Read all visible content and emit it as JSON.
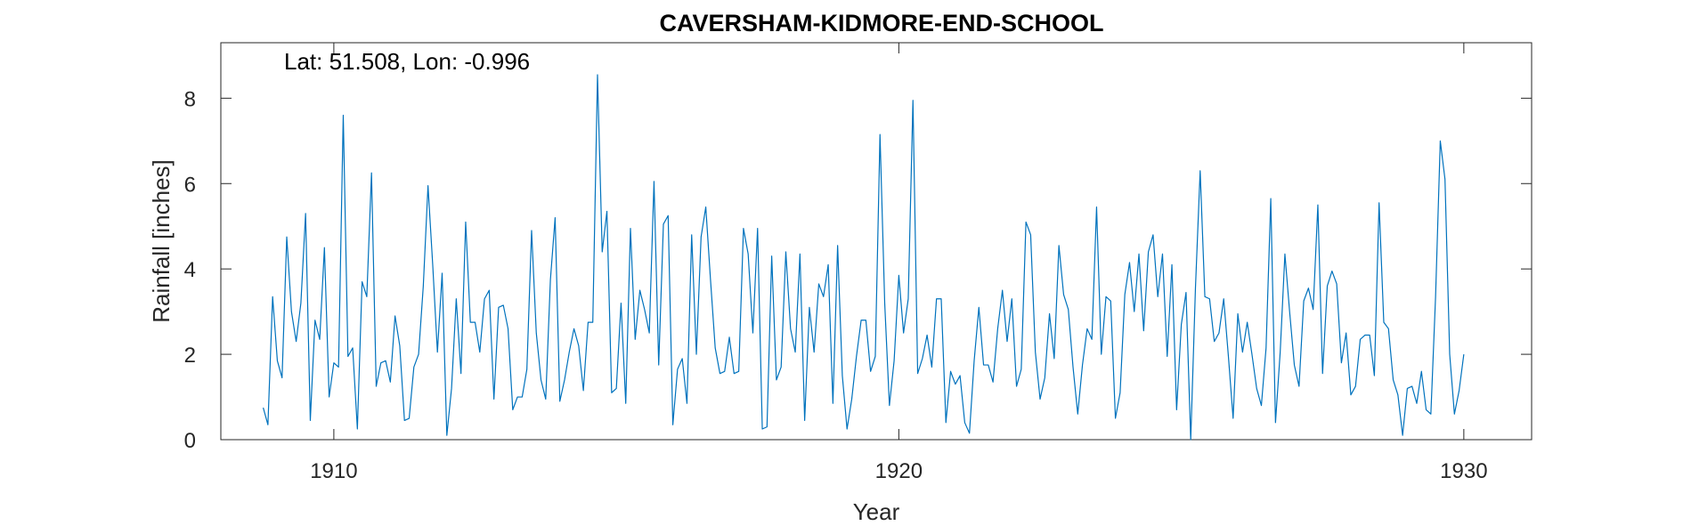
{
  "chart_data": {
    "type": "line",
    "title": "CAVERSHAM-KIDMORE-END-SCHOOL",
    "xlabel": "Year",
    "ylabel": "Rainfall [inches]",
    "annotation": "Lat: 51.508, Lon: -0.996",
    "xlim": [
      1908,
      1931.2
    ],
    "ylim": [
      0,
      9.3
    ],
    "xticks": [
      1910,
      1920,
      1930
    ],
    "yticks": [
      0,
      2,
      4,
      6,
      8
    ],
    "grid": false,
    "line_color": "#0072BD",
    "series": [
      {
        "x_start": 1908.75,
        "x_step": 0.0833333,
        "y": [
          0.75,
          0.35,
          3.35,
          1.85,
          1.45,
          4.75,
          3.0,
          2.3,
          3.2,
          5.3,
          0.45,
          2.8,
          2.35,
          4.5,
          1.0,
          1.8,
          1.7,
          7.6,
          1.95,
          2.15,
          0.25,
          3.7,
          3.35,
          6.25,
          1.25,
          1.8,
          1.85,
          1.35,
          2.9,
          2.2,
          0.45,
          0.5,
          1.7,
          2.0,
          3.6,
          5.95,
          4.1,
          2.05,
          3.9,
          0.1,
          1.2,
          3.3,
          1.55,
          5.1,
          2.75,
          2.75,
          2.05,
          3.3,
          3.5,
          0.95,
          3.1,
          3.15,
          2.6,
          0.7,
          1.0,
          1.0,
          1.65,
          4.9,
          2.5,
          1.4,
          0.95,
          3.75,
          5.2,
          0.9,
          1.4,
          2.05,
          2.6,
          2.2,
          1.15,
          2.75,
          2.75,
          8.55,
          4.4,
          5.35,
          1.1,
          1.2,
          3.2,
          0.85,
          4.95,
          2.35,
          3.5,
          3.05,
          2.5,
          6.05,
          1.75,
          5.05,
          5.25,
          0.35,
          1.65,
          1.9,
          0.85,
          4.8,
          2.0,
          4.75,
          5.45,
          3.75,
          2.15,
          1.55,
          1.6,
          2.4,
          1.55,
          1.6,
          4.95,
          4.35,
          2.5,
          4.95,
          0.25,
          0.3,
          4.3,
          1.4,
          1.7,
          4.4,
          2.6,
          2.05,
          4.35,
          0.45,
          3.1,
          2.05,
          3.65,
          3.35,
          4.1,
          0.85,
          4.55,
          1.5,
          0.25,
          0.95,
          1.95,
          2.8,
          2.8,
          1.6,
          1.95,
          7.15,
          3.2,
          0.8,
          1.85,
          3.85,
          2.5,
          3.3,
          7.95,
          1.55,
          1.9,
          2.45,
          1.7,
          3.3,
          3.3,
          0.4,
          1.6,
          1.3,
          1.5,
          0.4,
          0.15,
          1.85,
          3.1,
          1.75,
          1.75,
          1.35,
          2.6,
          3.5,
          2.3,
          3.3,
          1.25,
          1.65,
          5.1,
          4.8,
          2.05,
          0.95,
          1.45,
          2.95,
          1.9,
          4.55,
          3.4,
          3.05,
          1.7,
          0.6,
          1.75,
          2.6,
          2.35,
          5.45,
          2.0,
          3.35,
          3.25,
          0.5,
          1.1,
          3.4,
          4.15,
          3.0,
          4.35,
          2.55,
          4.4,
          4.8,
          3.35,
          4.35,
          1.95,
          4.1,
          0.7,
          2.7,
          3.45,
          0.0,
          3.55,
          6.3,
          3.35,
          3.3,
          2.3,
          2.5,
          3.3,
          1.95,
          0.5,
          2.95,
          2.05,
          2.75,
          2.0,
          1.2,
          0.8,
          2.15,
          5.65,
          0.4,
          2.05,
          4.35,
          3.0,
          1.75,
          1.25,
          3.25,
          3.55,
          3.05,
          5.5,
          1.55,
          3.6,
          3.95,
          3.65,
          1.8,
          2.5,
          1.05,
          1.25,
          2.35,
          2.45,
          2.45,
          1.5,
          5.55,
          2.75,
          2.6,
          1.4,
          1.05,
          0.1,
          1.2,
          1.25,
          0.85,
          1.6,
          0.7,
          0.6,
          3.35,
          7.0,
          6.1,
          2.0,
          0.6,
          1.15,
          2.0
        ]
      }
    ]
  }
}
